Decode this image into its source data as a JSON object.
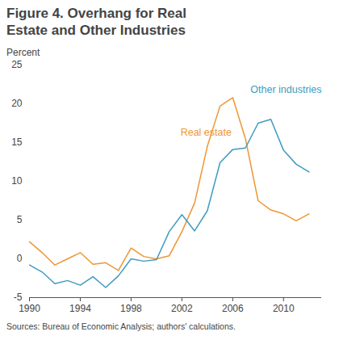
{
  "chart_data": {
    "type": "line",
    "title": "Figure 4. Overhang for Real Estate and Other Industries",
    "subtitle": "Percent",
    "caption": "Sources: Bureau of Economic Analysis; authors' calculations.",
    "x": [
      1990,
      1991,
      1992,
      1993,
      1994,
      1995,
      1996,
      1997,
      1998,
      1999,
      2000,
      2001,
      2002,
      2003,
      2004,
      2005,
      2006,
      2007,
      2008,
      2009,
      2010,
      2011,
      2012
    ],
    "series": [
      {
        "name": "Real estate",
        "color": "#ee9633",
        "values": [
          2.2,
          0.8,
          -0.8,
          0,
          0.8,
          -0.7,
          -0.5,
          -1.5,
          1.4,
          0.3,
          0,
          0.4,
          3.5,
          7.2,
          14.5,
          19.7,
          20.8,
          15.5,
          7.5,
          6.3,
          5.8,
          4.9,
          5.8
        ]
      },
      {
        "name": "Other industries",
        "color": "#3e9bc0",
        "values": [
          -0.8,
          -1.7,
          -3.2,
          -2.8,
          -3.4,
          -2.3,
          -3.7,
          -2.2,
          0,
          -0.3,
          -0.1,
          3.5,
          5.7,
          3.6,
          6.2,
          12.4,
          14.1,
          14.3,
          17.5,
          18,
          14,
          12.2,
          11.2
        ]
      }
    ],
    "annotations": [
      {
        "series": "Real estate",
        "x": 2003.9,
        "y": 16.3
      },
      {
        "series": "Other industries",
        "x": 2010.2,
        "y": 21.8
      }
    ],
    "xlim": [
      1990,
      2013
    ],
    "xticks": [
      1990,
      1994,
      1998,
      2002,
      2006,
      2010
    ],
    "ylim": [
      -5,
      25
    ],
    "yticks": [
      -5,
      0,
      5,
      10,
      15,
      20,
      25
    ],
    "grid": false
  }
}
